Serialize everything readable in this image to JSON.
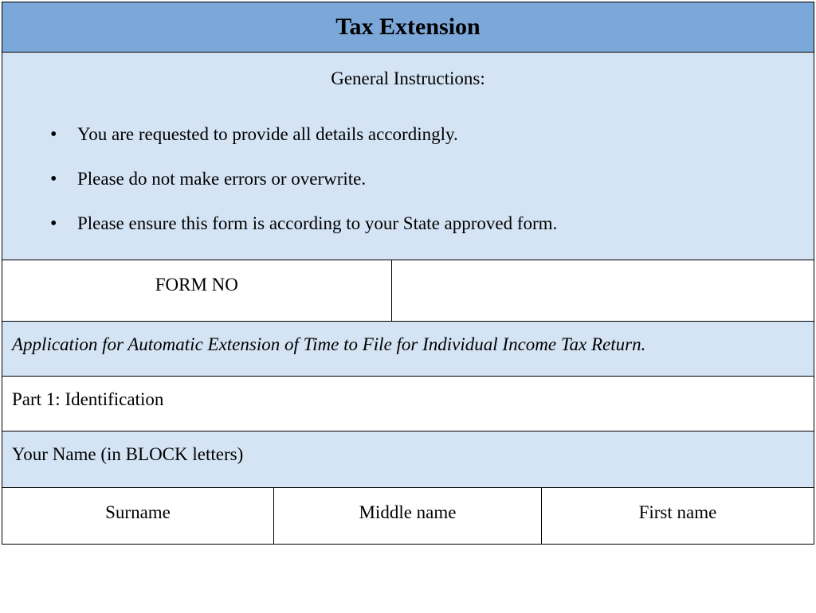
{
  "header": {
    "title": "Tax Extension"
  },
  "instructions": {
    "heading": "General Instructions:",
    "items": [
      "You are requested to provide all details accordingly.",
      "Please do not make errors or overwrite.",
      "Please ensure this form is according to your State approved form."
    ]
  },
  "form_no": {
    "label": "FORM NO",
    "value": ""
  },
  "application_title": "Application for Automatic Extension of Time to File for Individual Income Tax Return.",
  "part1": {
    "label": "Part 1: Identification"
  },
  "your_name": {
    "label": "Your Name (in BLOCK letters)"
  },
  "name_fields": {
    "surname": "Surname",
    "middle": "Middle name",
    "first": "First name"
  },
  "colors": {
    "header_bg": "#7ba7d9",
    "section_bg": "#d4e4f4",
    "white_bg": "#ffffff",
    "border": "#000000",
    "text": "#000000"
  },
  "typography": {
    "font_family": "Times New Roman",
    "title_size": 30,
    "body_size": 23
  }
}
